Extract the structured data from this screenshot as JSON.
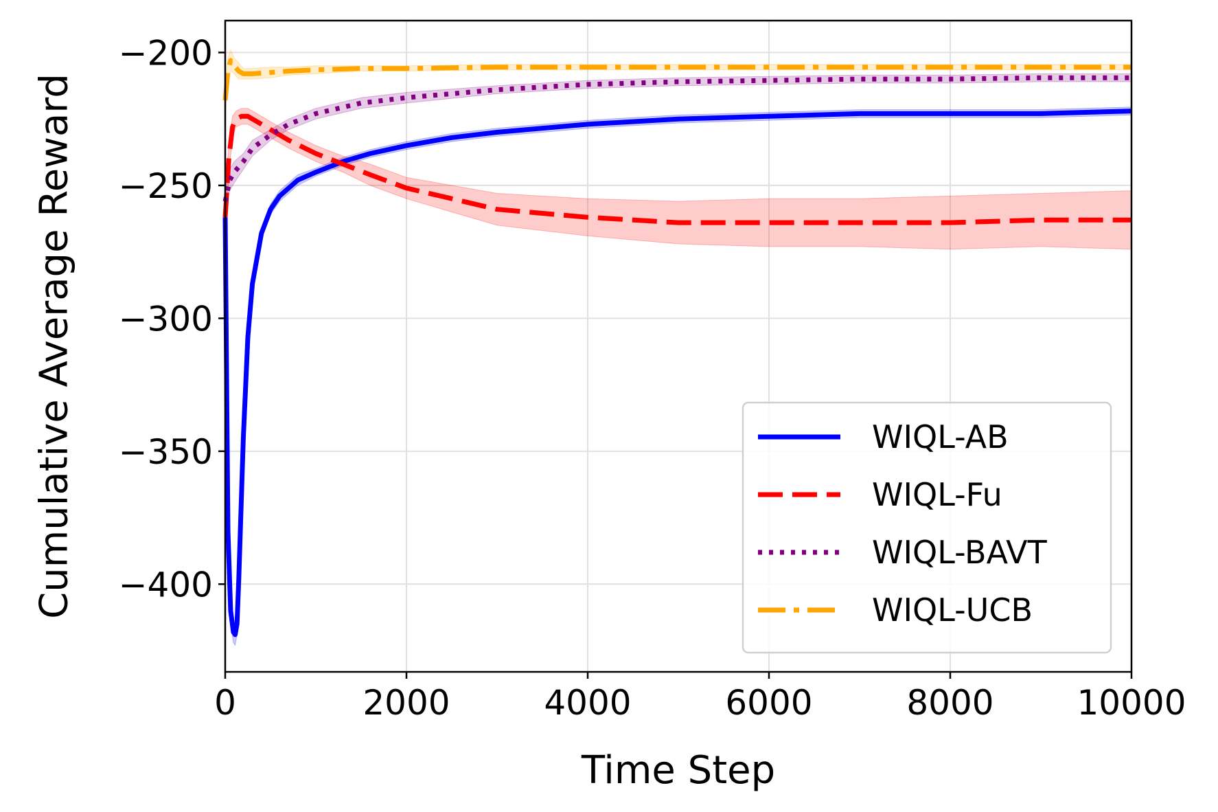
{
  "chart_data": {
    "type": "line",
    "xlabel": "Time Step",
    "ylabel": "Cumulative Average Reward",
    "xlim": [
      0,
      10000
    ],
    "ylim": [
      -433,
      -188
    ],
    "xticks": [
      0,
      2000,
      4000,
      6000,
      8000,
      10000
    ],
    "yticks": [
      -200,
      -250,
      -300,
      -350,
      -400
    ],
    "xtick_labels": [
      "0",
      "2000",
      "4000",
      "6000",
      "8000",
      "10000"
    ],
    "ytick_labels": [
      "−200",
      "−250",
      "−300",
      "−350",
      "−400"
    ],
    "grid": true,
    "legend_position": "lower right",
    "series": [
      {
        "name": "WIQL-AB",
        "color": "#0000ff",
        "style": "solid",
        "x": [
          0,
          30,
          60,
          90,
          110,
          130,
          150,
          200,
          250,
          300,
          400,
          500,
          600,
          800,
          1000,
          1300,
          1600,
          2000,
          2500,
          3000,
          4000,
          5000,
          6000,
          7000,
          8000,
          9000,
          10000
        ],
        "y": [
          -262,
          -380,
          -410,
          -418,
          -419,
          -415,
          -398,
          -345,
          -307,
          -287,
          -268,
          -259,
          -254,
          -248,
          -245,
          -241,
          -238,
          -235,
          -232,
          -230,
          -227,
          -225,
          -224,
          -223,
          -223,
          -223,
          -222
        ],
        "band": [
          2,
          6,
          5,
          4,
          4,
          4,
          4,
          3,
          3,
          2,
          2,
          2,
          2,
          2,
          1.5,
          1.5,
          1.5,
          1.5,
          1.5,
          1.5,
          1.5,
          1.5,
          1.5,
          1.5,
          1.5,
          1.5,
          1.5
        ]
      },
      {
        "name": "WIQL-Fu",
        "color": "#ff0000",
        "style": "dashed",
        "x": [
          0,
          40,
          80,
          120,
          180,
          250,
          350,
          500,
          700,
          1000,
          1300,
          1600,
          2000,
          2500,
          3000,
          4000,
          5000,
          6000,
          7000,
          8000,
          9000,
          10000
        ],
        "y": [
          -262,
          -240,
          -228,
          -225,
          -224,
          -224,
          -226,
          -229,
          -233,
          -238,
          -242,
          -246,
          -251,
          -255,
          -259,
          -262,
          -264,
          -264,
          -264,
          -264,
          -263,
          -263
        ],
        "band": [
          8,
          6,
          4,
          3,
          3,
          3,
          3,
          3,
          3,
          3,
          3,
          4,
          4,
          5,
          6,
          7,
          8,
          9,
          9,
          10,
          10,
          11
        ]
      },
      {
        "name": "WIQL-BAVT",
        "color": "#800080",
        "style": "dotted",
        "x": [
          0,
          50,
          100,
          200,
          300,
          500,
          700,
          1000,
          1500,
          2000,
          3000,
          4000,
          5000,
          6000,
          7000,
          8000,
          9000,
          10000
        ],
        "y": [
          -256,
          -248,
          -245,
          -241,
          -236,
          -231,
          -227,
          -223,
          -219,
          -217,
          -214,
          -212,
          -211,
          -210.5,
          -210,
          -210,
          -209.5,
          -209.5
        ],
        "band": [
          4,
          4,
          4,
          3,
          3,
          2,
          2,
          2,
          2,
          2,
          1.5,
          1.5,
          1.5,
          1.5,
          1.5,
          1.5,
          1.5,
          1.5
        ]
      },
      {
        "name": "WIQL-UCB",
        "color": "#ffa500",
        "style": "dashdot",
        "x": [
          0,
          30,
          60,
          100,
          150,
          200,
          300,
          500,
          700,
          1000,
          1500,
          2000,
          3000,
          4000,
          5000,
          6000,
          7000,
          8000,
          9000,
          10000
        ],
        "y": [
          -218,
          -207,
          -203,
          -205,
          -207,
          -208,
          -208,
          -207.5,
          -207,
          -206.5,
          -206,
          -206,
          -205.5,
          -205.5,
          -205.5,
          -205.5,
          -205.5,
          -205.5,
          -205.5,
          -205.5
        ],
        "band": [
          6,
          5,
          4,
          3,
          3,
          2,
          2,
          2,
          1.5,
          1.5,
          1,
          1,
          1,
          1,
          1,
          1,
          1,
          1,
          1,
          1
        ]
      }
    ]
  }
}
